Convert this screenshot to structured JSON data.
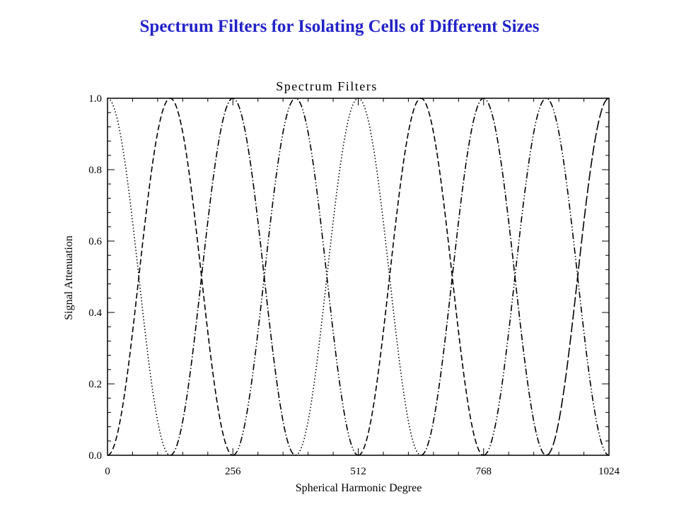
{
  "slide": {
    "title": "Spectrum Filters for Isolating Cells of Different Sizes"
  },
  "chart_data": {
    "type": "line",
    "title": "Spectrum Filters",
    "xlabel": "Spherical Harmonic Degree",
    "ylabel": "Signal Attenuation",
    "xlim": [
      0,
      1024
    ],
    "ylim": [
      0,
      1.0
    ],
    "x_ticks": [
      "0",
      "256",
      "512",
      "768",
      "1024"
    ],
    "y_ticks": [
      "0.0",
      "0.2",
      "0.4",
      "0.6",
      "0.8",
      "1.0"
    ],
    "grid": false,
    "legend": "none",
    "series": [
      {
        "style": "dotted",
        "x": [
          0,
          64,
          128
        ],
        "y": [
          1.0,
          0.5,
          0.0
        ]
      },
      {
        "style": "dashed",
        "x": [
          0,
          64,
          128,
          192,
          256
        ],
        "y": [
          0.0,
          0.5,
          1.0,
          0.5,
          0.0
        ]
      },
      {
        "style": "dash-dot",
        "x": [
          128,
          192,
          256,
          320,
          384
        ],
        "y": [
          0.0,
          0.5,
          1.0,
          0.5,
          0.0
        ]
      },
      {
        "style": "dash-dot-dot",
        "x": [
          256,
          320,
          384,
          448,
          512
        ],
        "y": [
          0.0,
          0.5,
          1.0,
          0.5,
          0.0
        ]
      },
      {
        "style": "dotted",
        "x": [
          384,
          448,
          512,
          576,
          640
        ],
        "y": [
          0.0,
          0.5,
          1.0,
          0.5,
          0.0
        ]
      },
      {
        "style": "dashed",
        "x": [
          512,
          576,
          640,
          704,
          768
        ],
        "y": [
          0.0,
          0.5,
          1.0,
          0.5,
          0.0
        ]
      },
      {
        "style": "dash-dot",
        "x": [
          640,
          704,
          768,
          832,
          896
        ],
        "y": [
          0.0,
          0.5,
          1.0,
          0.5,
          0.0
        ]
      },
      {
        "style": "dash-dot-dot",
        "x": [
          768,
          832,
          896,
          960,
          1024
        ],
        "y": [
          0.0,
          0.5,
          1.0,
          0.5,
          0.0
        ]
      },
      {
        "style": "long-dash",
        "x": [
          896,
          960,
          1024
        ],
        "y": [
          0.0,
          0.5,
          1.0
        ]
      }
    ]
  }
}
